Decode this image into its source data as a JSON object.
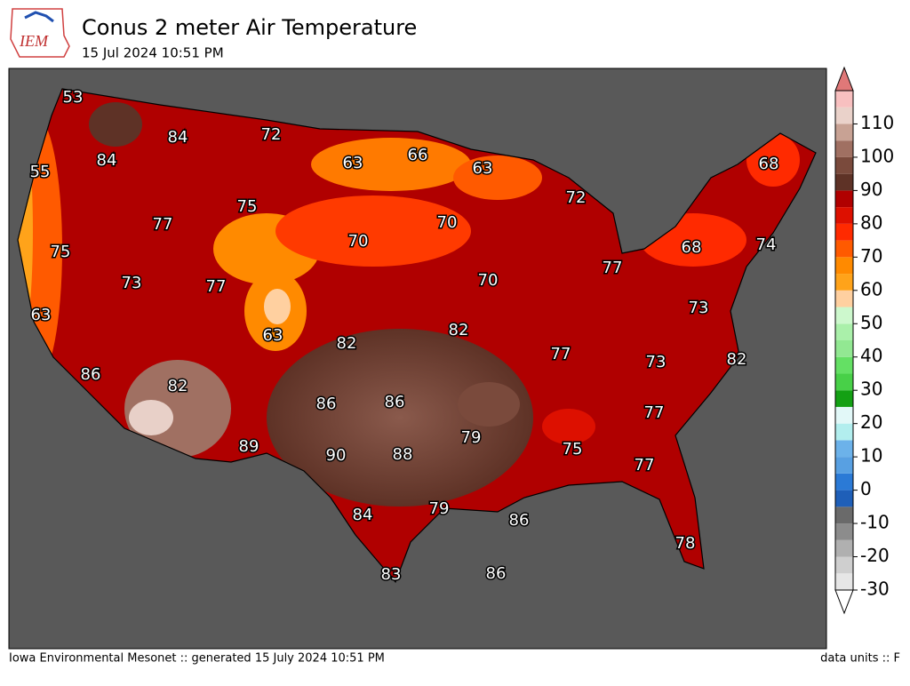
{
  "header": {
    "logo": "IEM",
    "title": "Conus 2 meter Air Temperature",
    "subtitle": "15 Jul 2024 10:51 PM"
  },
  "map": {
    "labels": [
      53,
      84,
      72,
      63,
      66,
      63,
      68,
      55,
      84,
      72,
      75,
      77,
      70,
      70,
      75,
      73,
      77,
      70,
      77,
      68,
      74,
      63,
      73,
      63,
      82,
      82,
      86,
      82,
      77,
      73,
      82,
      86,
      86,
      77,
      79,
      89,
      90,
      88,
      75,
      77,
      84,
      79,
      86,
      78,
      83,
      86
    ]
  },
  "colorbar": {
    "lim": [
      -30,
      120
    ],
    "ticks": [
      -30,
      -20,
      -10,
      0,
      10,
      20,
      30,
      40,
      50,
      60,
      70,
      80,
      90,
      100,
      110
    ],
    "colors": [
      "#e6e6e6",
      "#cfcfcf",
      "#b0b0b0",
      "#8c8c8c",
      "#6a6a6a",
      "#1f5fb8",
      "#2b7ad6",
      "#58a0e2",
      "#6cb2ea",
      "#b2eeee",
      "#e2f8f8",
      "#14a014",
      "#48d048",
      "#64e064",
      "#92e892",
      "#aaf0aa",
      "#cdf8cd",
      "#ffd0a0",
      "#ffa31a",
      "#ff8a00",
      "#ff5a00",
      "#ff2a00",
      "#dd1000",
      "#b00000",
      "#5e3226",
      "#7a4a3c",
      "#a07062",
      "#c8a294",
      "#ead2ca",
      "#f8c0c0",
      "#e07878"
    ]
  },
  "footer": {
    "left": "Iowa Environmental Mesonet :: generated 15 July 2024 10:51 PM",
    "right": "data units :: F"
  }
}
